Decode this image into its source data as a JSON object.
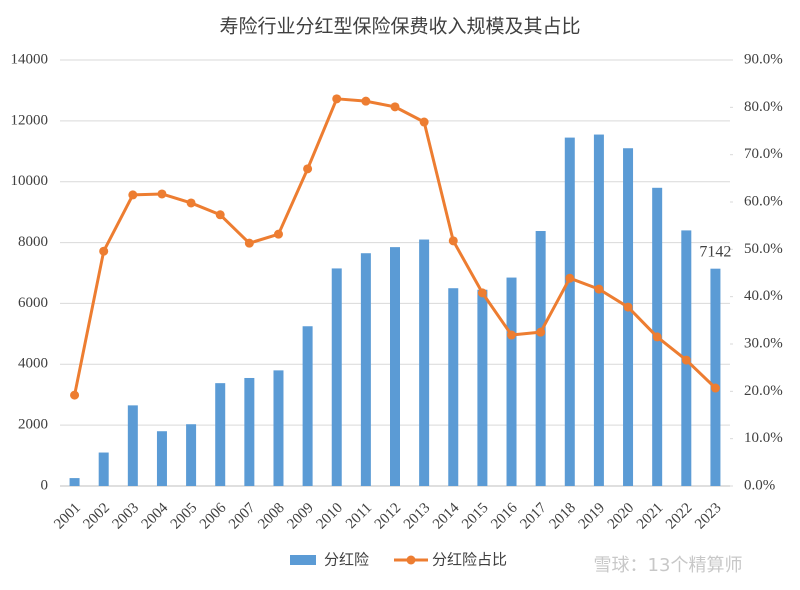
{
  "chart_data": {
    "type": "bar-line",
    "title": "寿险行业分红型保险保费收入规模及其占比",
    "categories": [
      "2001",
      "2002",
      "2003",
      "2004",
      "2005",
      "2006",
      "2007",
      "2008",
      "2009",
      "2010",
      "2011",
      "2012",
      "2013",
      "2014",
      "2015",
      "2016",
      "2017",
      "2018",
      "2019",
      "2020",
      "2021",
      "2022",
      "2023"
    ],
    "series": [
      {
        "name": "分红险",
        "type": "bar",
        "color": "#5b9bd5",
        "values": [
          260,
          1100,
          2650,
          1800,
          2030,
          3380,
          3550,
          3800,
          5250,
          7150,
          7650,
          7850,
          8100,
          6500,
          6450,
          6850,
          8380,
          11450,
          11550,
          11100,
          9800,
          8400,
          7142
        ]
      },
      {
        "name": "分红险占比",
        "type": "line",
        "axis": "y2",
        "color": "#ed7d31",
        "values": [
          19.2,
          49.6,
          61.5,
          61.7,
          59.8,
          57.3,
          51.3,
          53.2,
          67.0,
          81.8,
          81.3,
          80.1,
          76.9,
          51.8,
          40.8,
          31.9,
          32.5,
          43.9,
          41.6,
          37.8,
          31.5,
          26.6,
          20.7
        ]
      }
    ],
    "data_label": {
      "series": 0,
      "index": 22
    },
    "ylim": [
      0,
      14000
    ],
    "yticks": [
      0,
      2000,
      4000,
      6000,
      8000,
      10000,
      12000,
      14000
    ],
    "y2lim": [
      0,
      90
    ],
    "y2ticks": [
      {
        "value": 0,
        "label": "0.0%"
      },
      {
        "value": 10,
        "label": "10.0%"
      },
      {
        "value": 20,
        "label": "20.0%"
      },
      {
        "value": 30,
        "label": "30.0%"
      },
      {
        "value": 40,
        "label": "40.0%"
      },
      {
        "value": 50,
        "label": "50.0%"
      },
      {
        "value": 60,
        "label": "60.0%"
      },
      {
        "value": 70,
        "label": "70.0%"
      },
      {
        "value": 80,
        "label": "80.0%"
      },
      {
        "value": 90,
        "label": "90.0%"
      }
    ],
    "grid": true,
    "legend": "bottom",
    "watermark": "雪球：13个精算师"
  }
}
